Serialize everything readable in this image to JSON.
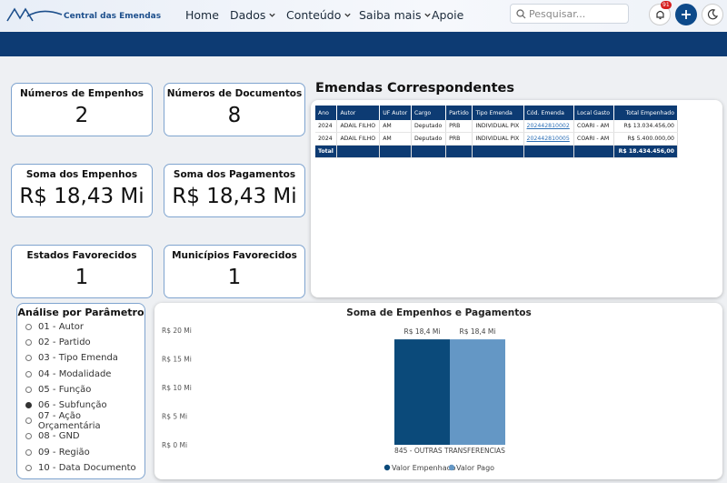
{
  "header": {
    "brand": "Central das Emendas",
    "nav": [
      "Home",
      "Dados",
      "Conteúdo",
      "Saiba mais",
      "Apoie"
    ],
    "search_placeholder": "Pesquisar...",
    "notification_count": "91"
  },
  "cards": [
    {
      "title": "Números de Empenhos",
      "value": "2"
    },
    {
      "title": "Números de Documentos",
      "value": "8"
    },
    {
      "title": "Soma dos Empenhos",
      "value": "R$ 18,43 Mi"
    },
    {
      "title": "Soma dos Pagamentos",
      "value": "R$ 18,43 Mi"
    },
    {
      "title": "Estados Favorecidos",
      "value": "1"
    },
    {
      "title": "Municípios Favorecidos",
      "value": "1"
    }
  ],
  "table": {
    "title": "Emendas Correspondentes",
    "columns": [
      "Ano",
      "Autor",
      "UF Autor",
      "Cargo",
      "Partido",
      "Tipo Emenda",
      "Cód. Emenda",
      "Local Gasto",
      "Total Empenhado"
    ],
    "rows": [
      [
        "2024",
        "ADAIL FILHO",
        "AM",
        "Deputado",
        "PRB",
        "INDIVIDUAL PIX",
        "202442810002",
        "COARI - AM",
        "R$ 13.034.456,00"
      ],
      [
        "2024",
        "ADAIL FILHO",
        "AM",
        "Deputado",
        "PRB",
        "INDIVIDUAL PIX",
        "202442810005",
        "COARI - AM",
        "R$ 5.400.000,00"
      ]
    ],
    "total_label": "Total",
    "total_value": "R$ 18.434.456,00"
  },
  "parameters": {
    "title": "Análise por Parâmetro",
    "options": [
      {
        "label": "01 - Autor",
        "checked": false
      },
      {
        "label": "02 - Partido",
        "checked": false
      },
      {
        "label": "03 - Tipo Emenda",
        "checked": false
      },
      {
        "label": "04 - Modalidade",
        "checked": false
      },
      {
        "label": "05 - Função",
        "checked": false
      },
      {
        "label": "06 - Subfunção",
        "checked": true
      },
      {
        "label": "07 - Ação Orçamentária",
        "checked": false
      },
      {
        "label": "08 - GND",
        "checked": false
      },
      {
        "label": "09 - Região",
        "checked": false
      },
      {
        "label": "10 - Data Documento",
        "checked": false
      }
    ]
  },
  "chart_data": {
    "type": "bar",
    "title": "Soma de Empenhos e Pagamentos",
    "categories": [
      "845 - OUTRAS TRANSFERENCIAS"
    ],
    "series": [
      {
        "name": "Valor Empenhado",
        "color": "#0b4a7a",
        "values": [
          18.4
        ],
        "value_labels": [
          "R$ 18,4 Mi"
        ]
      },
      {
        "name": "Valor Pago",
        "color": "#6497c5",
        "values": [
          18.4
        ],
        "value_labels": [
          "R$ 18,4 Mi"
        ]
      }
    ],
    "ylim": [
      0,
      20
    ],
    "yticks": [
      {
        "value": 0,
        "label": "R$ 0 Mi"
      },
      {
        "value": 5,
        "label": "R$ 5 Mi"
      },
      {
        "value": 10,
        "label": "R$ 10 Mi"
      },
      {
        "value": 15,
        "label": "R$ 15 Mi"
      },
      {
        "value": 20,
        "label": "R$ 20 Mi"
      }
    ],
    "grid": false
  }
}
